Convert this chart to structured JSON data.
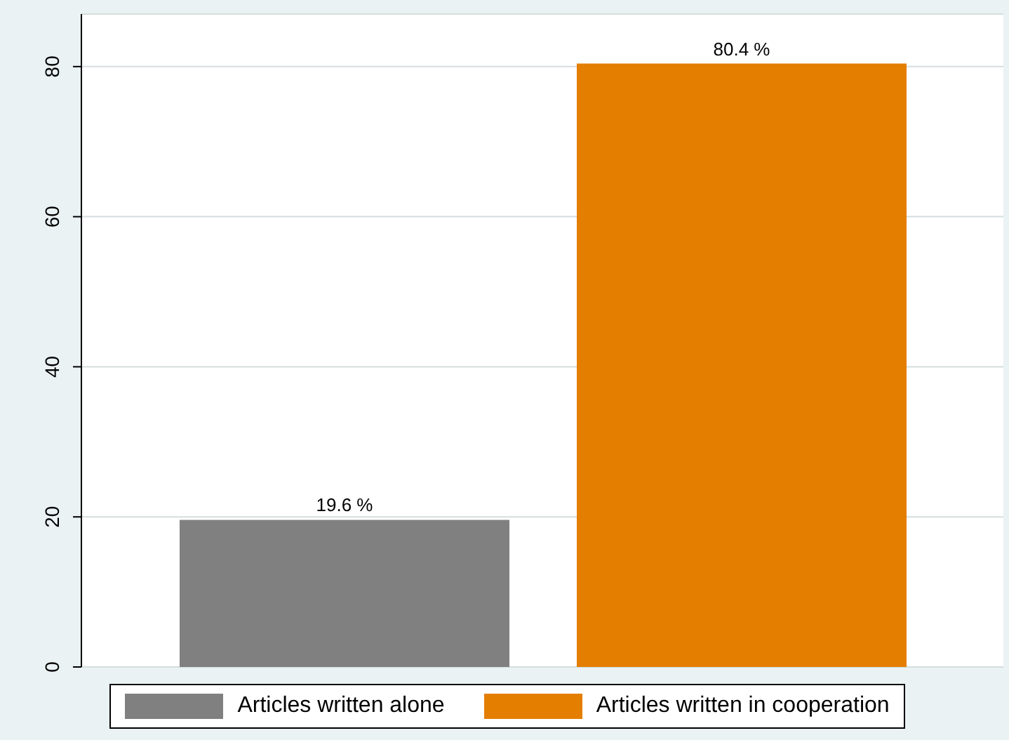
{
  "chart_data": {
    "type": "bar",
    "categories": [
      null
    ],
    "series": [
      {
        "name": "Articles written alone",
        "color": "#808080",
        "values": [
          19.6
        ],
        "value_labels": [
          "19.6 %"
        ]
      },
      {
        "name": "Articles written in cooperation",
        "color": "#e37e00",
        "values": [
          80.4
        ],
        "value_labels": [
          "80.4 %"
        ]
      }
    ],
    "ylim": [
      0,
      87
    ],
    "yticks": [
      0,
      20,
      40,
      60,
      80
    ],
    "grid": "y",
    "legend": "bottom"
  }
}
